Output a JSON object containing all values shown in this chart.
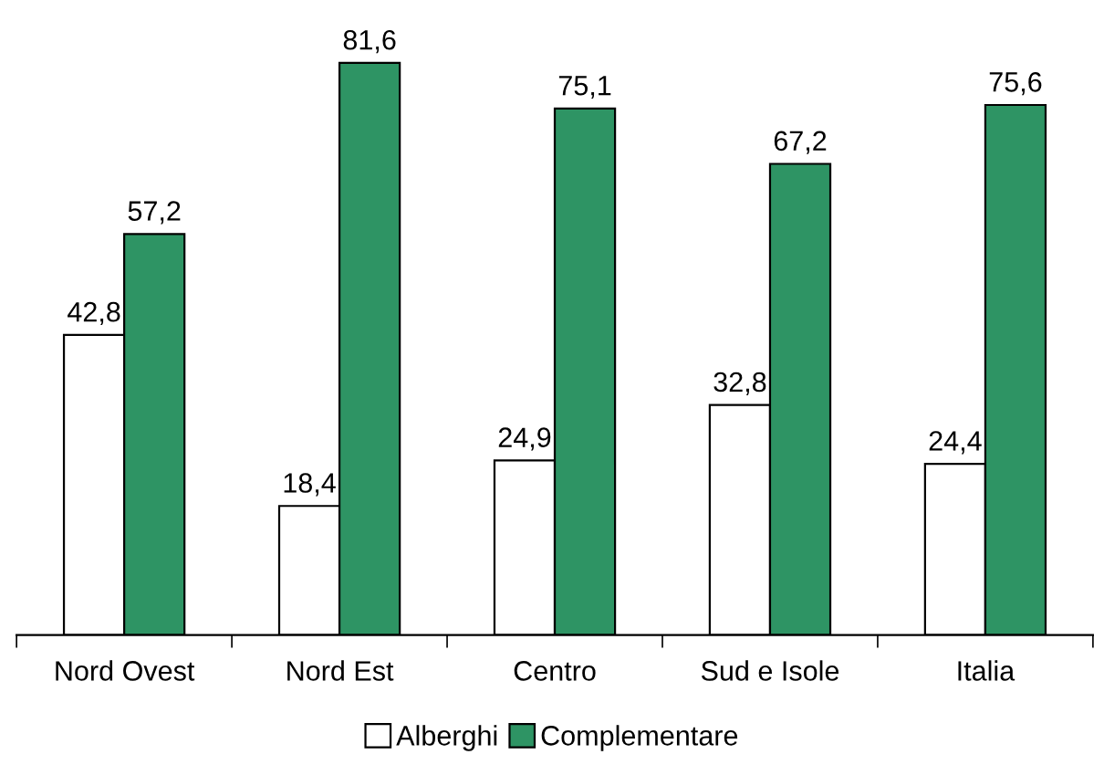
{
  "chart_data": {
    "type": "bar",
    "categories": [
      "Nord Ovest",
      "Nord Est",
      "Centro",
      "Sud e Isole",
      "Italia"
    ],
    "series": [
      {
        "name": "Alberghi",
        "color": "#ffffff",
        "values": [
          42.8,
          18.4,
          24.9,
          32.8,
          24.4
        ],
        "value_labels": [
          "42,8",
          "18,4",
          "24,9",
          "32,8",
          "24,4"
        ]
      },
      {
        "name": "Complementare",
        "color": "#2e9464",
        "values": [
          57.2,
          81.6,
          75.1,
          67.2,
          75.6
        ],
        "value_labels": [
          "57,2",
          "81,6",
          "75,1",
          "67,2",
          "75,6"
        ]
      }
    ],
    "legend": "bottom",
    "grid": false
  }
}
